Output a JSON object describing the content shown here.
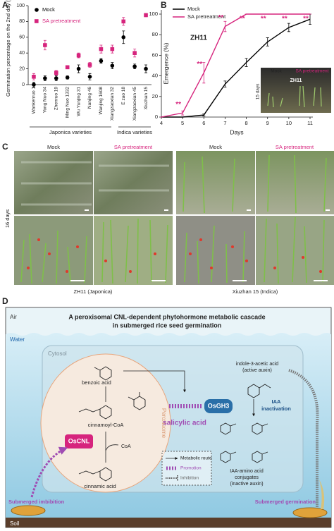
{
  "panel_labels": [
    "A",
    "B",
    "C",
    "D"
  ],
  "chart_data": [
    {
      "type": "dot",
      "ylabel": "Germination percentage on the 2nd day (%)",
      "categories": [
        "Wankenruo 1",
        "Yong Nuo 34",
        "Zhenruo 19",
        "Ming Nuo 1332",
        "Wu Yunjing 31",
        "Nanjing 46",
        "Wanjing 1608",
        "Xiangzaoxian 32",
        "E zao 18",
        "Xiangzaoxian 45",
        "Xiuzhan 15"
      ],
      "group_labels": [
        "Japonica varieties",
        "Indica varieties"
      ],
      "ylim": [
        0,
        100
      ],
      "yticks": [
        0,
        20,
        40,
        60,
        80,
        100
      ],
      "series": [
        {
          "name": "Mock",
          "color": "#000000",
          "marker": "circle",
          "values": [
            0,
            8,
            8,
            9,
            20,
            10,
            30,
            24,
            60,
            23,
            20
          ],
          "errors": [
            3,
            3,
            3,
            2,
            5,
            4,
            3,
            4,
            8,
            3,
            5
          ]
        },
        {
          "name": "SA pretreatment",
          "color": "#d6247d",
          "marker": "square",
          "values": [
            10,
            50,
            15,
            22,
            37,
            25,
            45,
            45,
            80,
            40,
            88
          ],
          "errors": [
            4,
            6,
            3,
            2,
            3,
            3,
            5,
            5,
            5,
            5,
            2
          ]
        }
      ]
    },
    {
      "type": "line",
      "title": "ZH11",
      "xlabel": "Days",
      "ylabel": "Emergence (%)",
      "x": [
        4,
        5,
        6,
        7,
        8,
        9,
        10,
        11
      ],
      "xlim": [
        4,
        11
      ],
      "xticks": [
        4,
        5,
        6,
        7,
        8,
        9,
        10,
        11
      ],
      "ylim": [
        0,
        100
      ],
      "yticks": [
        0,
        20,
        40,
        60,
        80,
        100
      ],
      "series": [
        {
          "name": "Mock",
          "color": "#000000",
          "values": [
            0,
            0,
            2,
            32,
            53,
            73,
            87,
            95
          ],
          "errors": [
            0,
            0,
            1,
            3,
            4,
            4,
            4,
            5
          ]
        },
        {
          "name": "SA pretreatment",
          "color": "#d6247d",
          "values": [
            0,
            4,
            43,
            88,
            100,
            100,
            100,
            100
          ],
          "errors": [
            0,
            2,
            10,
            5,
            0,
            0,
            0,
            0
          ]
        }
      ],
      "annotations": [
        {
          "text": "**",
          "x": 5
        },
        {
          "text": "**",
          "x": 6
        },
        {
          "text": "**",
          "x": 7
        },
        {
          "text": "**",
          "x": 8
        },
        {
          "text": "**",
          "x": 9
        },
        {
          "text": "**",
          "x": 10
        },
        {
          "text": "**",
          "x": 11
        }
      ],
      "inset": {
        "labels": [
          "Mock",
          "SA pretreatment"
        ],
        "title": "ZH11",
        "duration": "15 days"
      }
    }
  ],
  "panel_c": {
    "headers": [
      "Mock",
      "SA pretreatment",
      "Mock",
      "SA pretreatment"
    ],
    "duration": "16 days",
    "captions": [
      "ZH11 (Japonica)",
      "Xiuzhan 15 (Indica)"
    ]
  },
  "panel_d": {
    "title": [
      "A peroxisomal CNL-dependent phytohormone metabolic cascade",
      "in submerged rice seed germination"
    ],
    "air": "Air",
    "water": "Water",
    "soil": "Soil",
    "cytosol": "Cytosol",
    "peroxisome": "Peroxisome",
    "compounds": {
      "benzoic": "benzoic acid",
      "cinnamoyl": "cinnamoyl-CoA",
      "coa": "CoA",
      "cinnamic": "cinnamic acid",
      "salicylic": "salicylic acid"
    },
    "enzymes": [
      "OsCNL",
      "OsGH3"
    ],
    "iaa": [
      "indole-3-acetic acid",
      "(active auxin)"
    ],
    "iaa_inactivation": [
      "IAA",
      "inactivation"
    ],
    "conjugates": [
      "IAA-amino acid",
      "conjugates",
      "(inactive auxin)"
    ],
    "legend": [
      "Metabolic route",
      "Promotion",
      "Inhibition"
    ],
    "stages": [
      "Submerged imbibition",
      "Submerged germination"
    ]
  }
}
